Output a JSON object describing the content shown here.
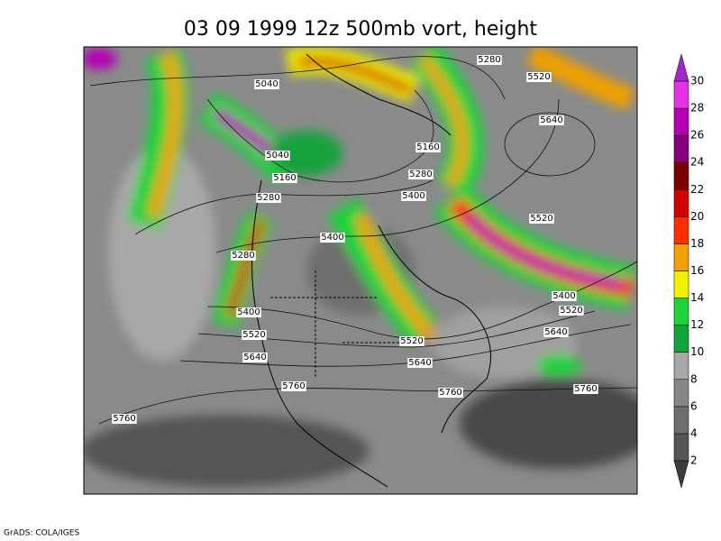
{
  "title": "03 09 1999 12z 500mb vort, height",
  "footer": "GrADS: COLA/IGES",
  "contour_labels": [
    "5280",
    "5520",
    "5040",
    "5640",
    "5040",
    "5160",
    "5160",
    "5280",
    "5280",
    "5400",
    "5520",
    "5400",
    "5280",
    "5400",
    "5520",
    "5400",
    "5520",
    "5640",
    "5520",
    "5640",
    "5640",
    "5760",
    "5760",
    "5760",
    "5760"
  ],
  "colorbar": {
    "levels": [
      2,
      4,
      6,
      8,
      10,
      12,
      14,
      16,
      18,
      20,
      22,
      24,
      26,
      28,
      30
    ],
    "colors": [
      "#3c3c3c",
      "#555555",
      "#6e6e6e",
      "#878787",
      "#a8a8a8",
      "#12a33c",
      "#1ed23c",
      "#f0f000",
      "#f0a000",
      "#ff2d00",
      "#d20000",
      "#7d0000",
      "#82007d",
      "#b400b4",
      "#e632e6",
      "#a028c8"
    ]
  }
}
